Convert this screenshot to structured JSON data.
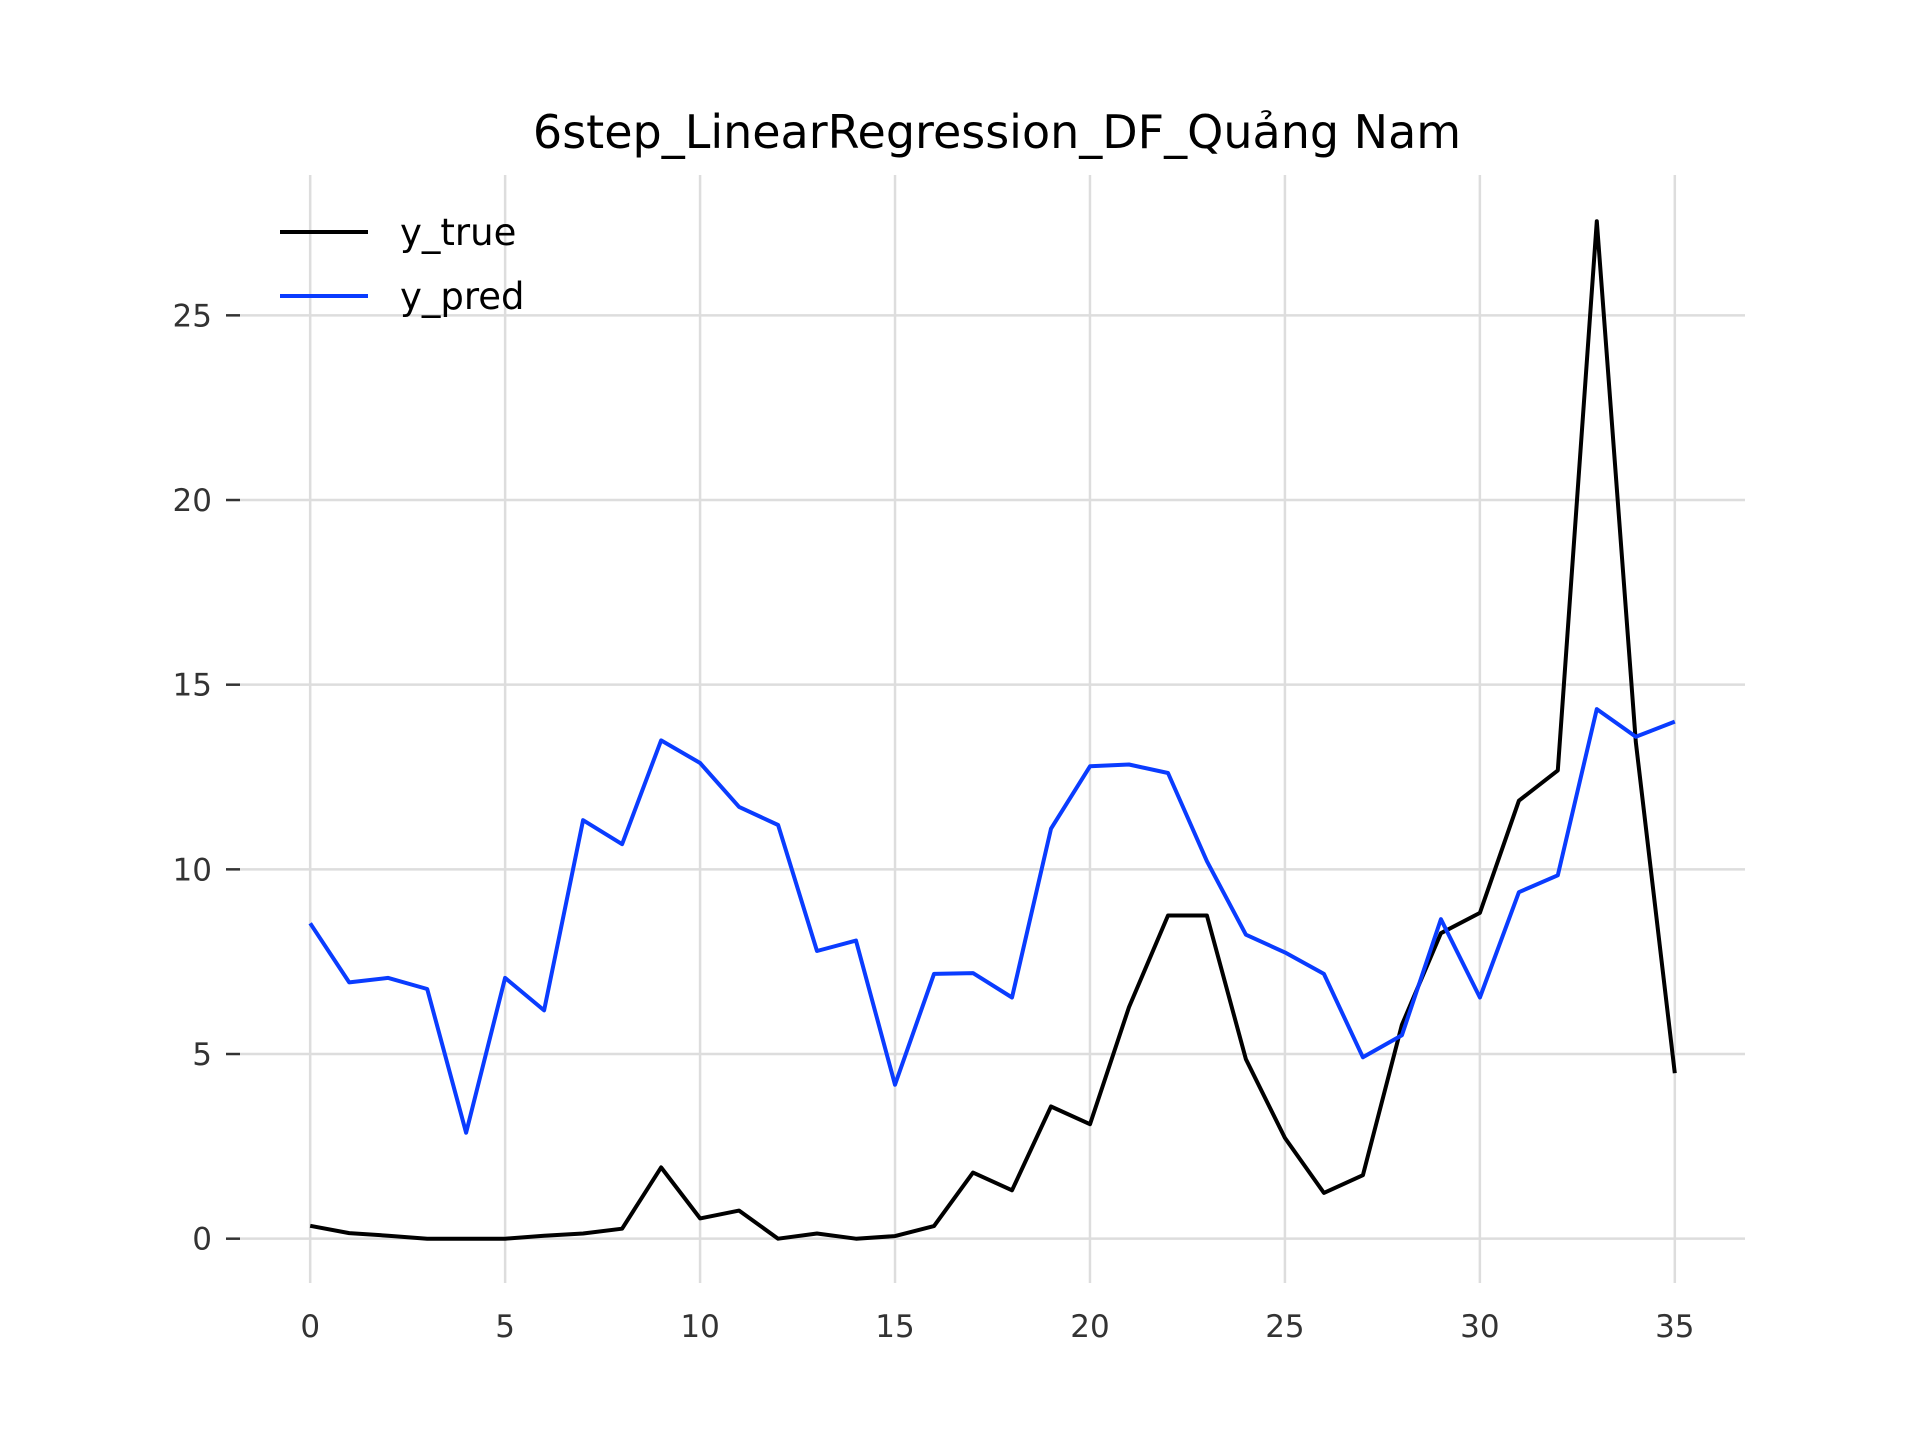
{
  "chart_data": {
    "type": "line",
    "title": "6step_LinearRegression_DF_Quảng Nam",
    "xlabel": "",
    "ylabel": "",
    "xlim": [
      -1.8,
      36.8
    ],
    "ylim": [
      -1.2,
      28.8
    ],
    "xticks": [
      0,
      5,
      10,
      15,
      20,
      25,
      30,
      35
    ],
    "yticks": [
      0,
      5,
      10,
      15,
      20,
      25
    ],
    "grid": true,
    "legend_position": "top-left",
    "x": [
      0,
      1,
      2,
      3,
      4,
      5,
      6,
      7,
      8,
      9,
      10,
      11,
      12,
      13,
      14,
      15,
      16,
      17,
      18,
      19,
      20,
      21,
      22,
      23,
      24,
      25,
      26,
      27,
      28,
      29,
      30,
      31,
      32,
      33,
      34,
      35
    ],
    "series": [
      {
        "name": "y_true",
        "color": "#000000",
        "values": [
          0.35,
          0.15,
          0.08,
          0.0,
          0.0,
          0.0,
          0.08,
          0.14,
          0.27,
          1.93,
          0.55,
          0.76,
          0.0,
          0.14,
          0.0,
          0.07,
          0.34,
          1.79,
          1.31,
          3.58,
          3.1,
          6.27,
          8.75,
          8.75,
          4.86,
          2.73,
          1.24,
          1.72,
          5.79,
          8.27,
          8.82,
          11.86,
          12.68,
          27.55,
          13.45,
          4.48
        ]
      },
      {
        "name": "y_pred",
        "color": "#0a3cff",
        "values": [
          8.54,
          6.94,
          7.06,
          6.76,
          2.87,
          7.06,
          6.18,
          11.33,
          10.68,
          13.49,
          12.88,
          11.69,
          11.2,
          7.79,
          8.07,
          4.17,
          7.17,
          7.19,
          6.53,
          11.1,
          12.79,
          12.84,
          12.61,
          10.22,
          8.23,
          7.75,
          7.17,
          4.91,
          5.51,
          8.65,
          6.53,
          9.38,
          9.84,
          14.34,
          13.59,
          14.0
        ]
      }
    ]
  }
}
